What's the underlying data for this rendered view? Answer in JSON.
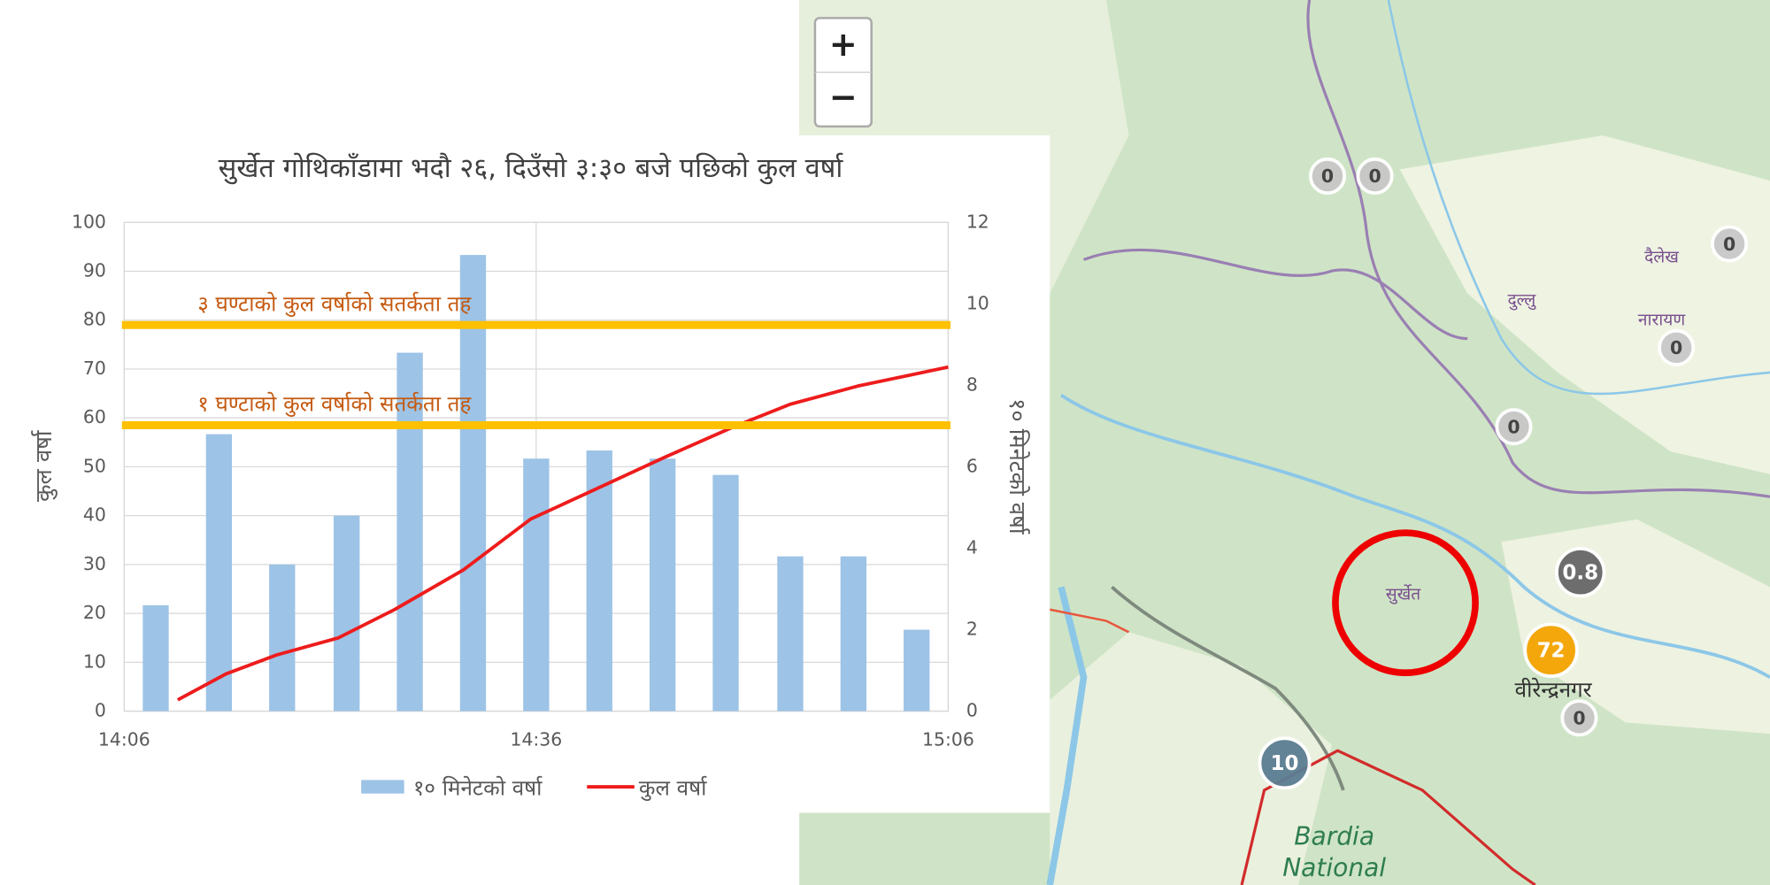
{
  "chart_data": {
    "type": "combo",
    "title": "सुर्खेत गोथिकाँडामा भदौ २६, दिउँसो ३:३० बजे पछिको कुल वर्षा",
    "ylabel": "कुल वर्षा",
    "y2label": "१० मिनेटको वर्षा",
    "xlim": [
      0,
      60
    ],
    "xticks": [
      {
        "value": 0,
        "label": "14:06"
      },
      {
        "value": 30,
        "label": "14:36"
      },
      {
        "value": 60,
        "label": "15:06"
      }
    ],
    "ylim": [
      0,
      100
    ],
    "yticks": [
      0,
      10,
      20,
      30,
      40,
      50,
      60,
      70,
      80,
      90,
      100
    ],
    "y2lim": [
      0,
      12
    ],
    "y2ticks": [
      0,
      2,
      4,
      6,
      8,
      10,
      12
    ],
    "grid": true,
    "legend": "bottom",
    "series": [
      {
        "name": "१० मिनेटको वर्षा",
        "type": "bar",
        "axis": "y2",
        "color": "#9dc3e6",
        "x": [
          2.3,
          6.9,
          11.5,
          16.2,
          20.8,
          25.4,
          30,
          34.6,
          39.2,
          43.8,
          48.5,
          53.1,
          57.7
        ],
        "values": [
          2.6,
          6.8,
          3.6,
          4.8,
          8.8,
          11.2,
          6.2,
          6.4,
          6.2,
          5.8,
          3.8,
          3.8,
          2.0
        ]
      },
      {
        "name": "कुल वर्षा",
        "type": "line",
        "color": "#ee1c1c",
        "x": [
          3.9,
          7.4,
          11.1,
          15.6,
          19.7,
          24.7,
          29.6,
          33.7,
          39.4,
          44.4,
          48.5,
          53.4,
          60
        ],
        "values": [
          2.3,
          7.6,
          11.5,
          15,
          20.8,
          28.9,
          39.3,
          44.6,
          52,
          58.2,
          62.8,
          66.5,
          70.4
        ]
      }
    ],
    "thresholds": [
      {
        "label": "३ घण्टाको कुल वर्षाको सतर्कता तह",
        "value": 79,
        "color": "#ffc000",
        "label_color": "#c55a11"
      },
      {
        "label": "१ घण्टाको कुल वर्षाको सतर्कता तह",
        "value": 58.5,
        "color": "#ffc000",
        "label_color": "#c55a11"
      }
    ]
  },
  "map": {
    "zoom_in": "+",
    "zoom_out": "−",
    "place_labels": [
      "दैलेख",
      "दुल्लु",
      "नारायण",
      "सुर्खेत",
      "वीरेन्द्रनगर",
      "Bardia",
      "National"
    ],
    "markers": [
      {
        "label": "0",
        "color": "#c8c8c8"
      },
      {
        "label": "0",
        "color": "#c8c8c8"
      },
      {
        "label": "0",
        "color": "#c8c8c8"
      },
      {
        "label": "0",
        "color": "#c8c8c8"
      },
      {
        "label": "0",
        "color": "#c8c8c8"
      },
      {
        "label": "0.8",
        "color": "#666666"
      },
      {
        "label": "72",
        "color": "#f5a300"
      },
      {
        "label": "0",
        "color": "#c8c8c8"
      },
      {
        "label": "10",
        "color": "#5b7d92"
      }
    ]
  }
}
